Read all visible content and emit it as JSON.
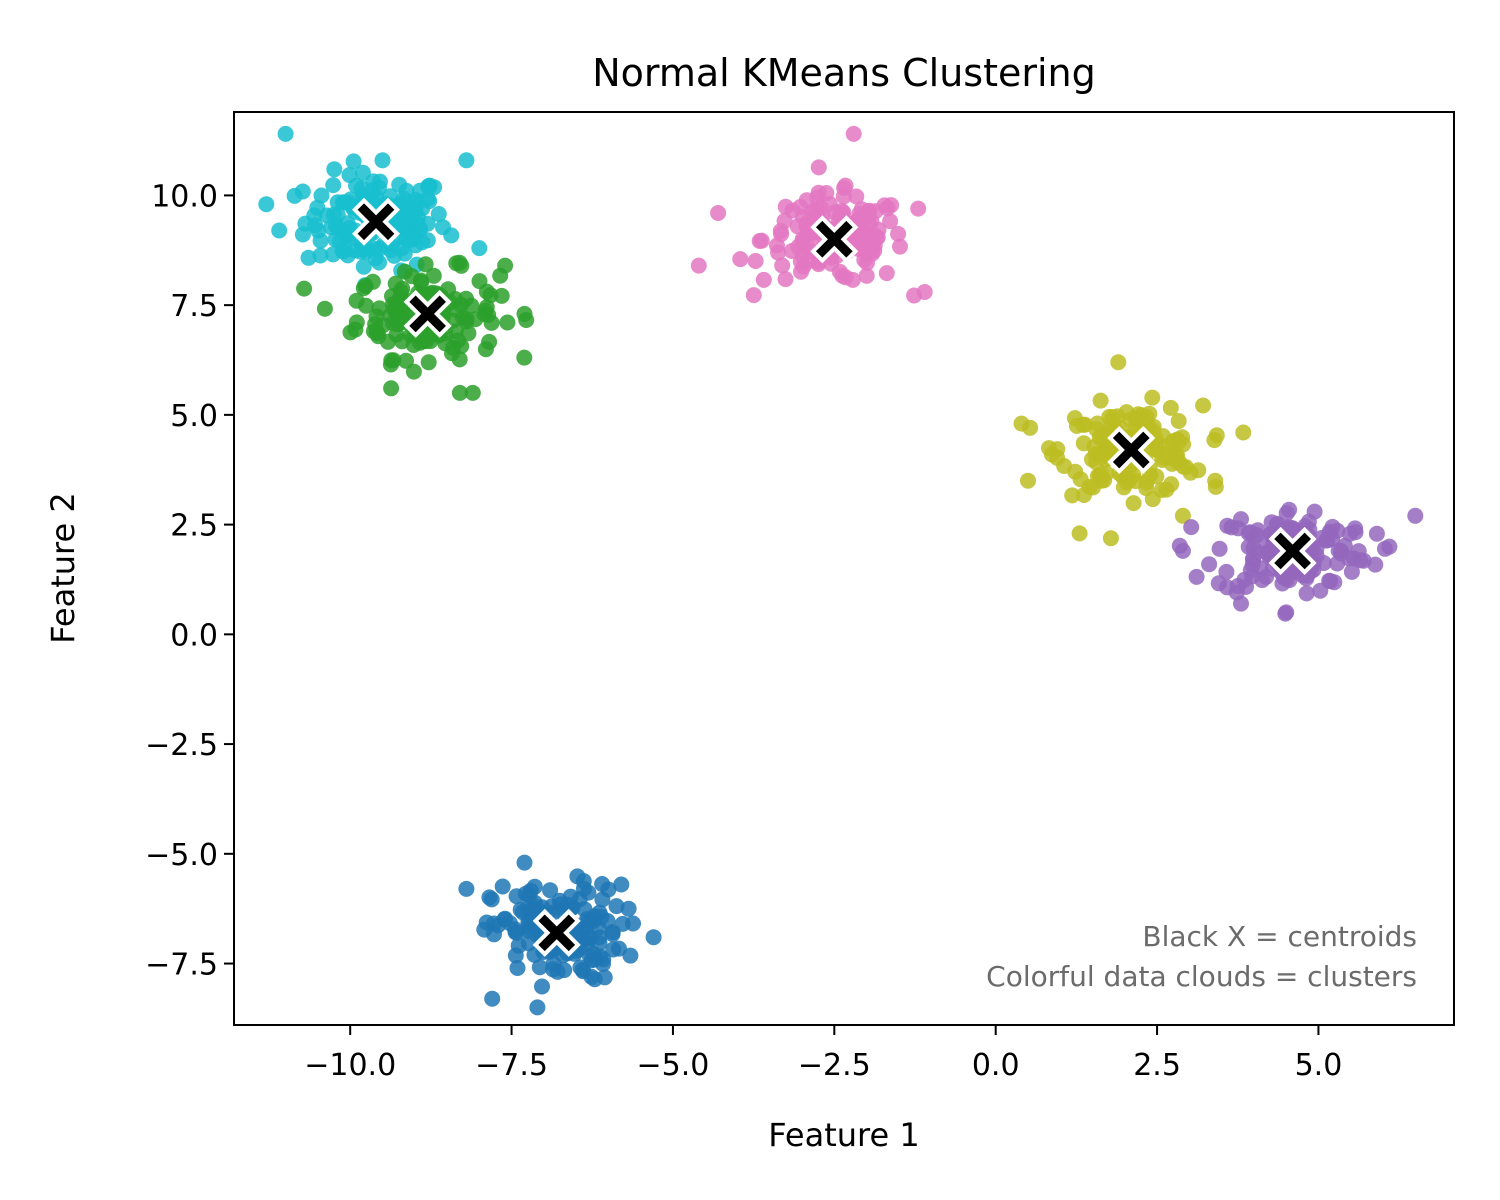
{
  "chart_data": {
    "type": "scatter",
    "title": "Normal KMeans Clustering",
    "xlabel": "Feature 1",
    "ylabel": "Feature 2",
    "xlim": [
      -11.8,
      7.1
    ],
    "ylim": [
      -8.9,
      11.9
    ],
    "xticks": [
      -10.0,
      -7.5,
      -5.0,
      -2.5,
      0.0,
      2.5,
      5.0
    ],
    "xtick_labels": [
      "−10.0",
      "−7.5",
      "−5.0",
      "−2.5",
      "0.0",
      "2.5",
      "5.0"
    ],
    "yticks": [
      -7.5,
      -5.0,
      -2.5,
      0.0,
      2.5,
      5.0,
      7.5,
      10.0
    ],
    "ytick_labels": [
      "−7.5",
      "−5.0",
      "−2.5",
      "0.0",
      "2.5",
      "5.0",
      "7.5",
      "10.0"
    ],
    "grid": false,
    "annotations": [
      "Black X = centroids",
      "Colorful data clouds = clusters"
    ],
    "clusters": [
      {
        "color": "#17becf",
        "center": [
          -9.6,
          9.4
        ],
        "spread": [
          0.55,
          0.55
        ],
        "n": 150,
        "outliers": [
          [
            -11.0,
            11.4
          ],
          [
            -11.3,
            9.8
          ],
          [
            -9.5,
            10.8
          ],
          [
            -8.2,
            10.8
          ],
          [
            -8.0,
            8.8
          ],
          [
            -11.1,
            9.2
          ]
        ]
      },
      {
        "color": "#2ca02c",
        "center": [
          -8.8,
          7.3
        ],
        "spread": [
          0.55,
          0.5
        ],
        "n": 150,
        "outliers": [
          [
            -8.3,
            5.5
          ],
          [
            -8.1,
            5.5
          ],
          [
            -7.3,
            7.3
          ],
          [
            -9.9,
            7.6
          ],
          [
            -7.6,
            8.4
          ]
        ]
      },
      {
        "color": "#e377c2",
        "center": [
          -2.5,
          9.0
        ],
        "spread": [
          0.55,
          0.5
        ],
        "n": 150,
        "outliers": [
          [
            -2.2,
            11.4
          ],
          [
            -4.6,
            8.4
          ],
          [
            -4.3,
            9.6
          ],
          [
            -1.1,
            7.8
          ],
          [
            -1.2,
            9.7
          ]
        ]
      },
      {
        "color": "#bcbd22",
        "center": [
          2.1,
          4.2
        ],
        "spread": [
          0.55,
          0.5
        ],
        "n": 150,
        "outliers": [
          [
            1.9,
            6.2
          ],
          [
            0.4,
            4.8
          ],
          [
            0.5,
            3.5
          ],
          [
            1.3,
            2.3
          ],
          [
            2.9,
            2.7
          ],
          [
            3.4,
            3.5
          ]
        ]
      },
      {
        "color": "#9467bd",
        "center": [
          4.6,
          1.9
        ],
        "spread": [
          0.6,
          0.5
        ],
        "n": 150,
        "outliers": [
          [
            6.5,
            2.7
          ],
          [
            4.5,
            0.5
          ],
          [
            2.9,
            1.9
          ],
          [
            6.1,
            2.0
          ],
          [
            3.8,
            0.7
          ]
        ]
      },
      {
        "color": "#1f77b4",
        "center": [
          -6.8,
          -6.8
        ],
        "spread": [
          0.5,
          0.55
        ],
        "n": 150,
        "outliers": [
          [
            -7.1,
            -8.5
          ],
          [
            -7.8,
            -8.3
          ],
          [
            -8.2,
            -5.8
          ],
          [
            -7.3,
            -5.2
          ],
          [
            -5.3,
            -6.9
          ],
          [
            -5.8,
            -5.7
          ]
        ]
      }
    ],
    "centroids": [
      [
        -9.6,
        9.4
      ],
      [
        -8.8,
        7.3
      ],
      [
        -2.5,
        9.0
      ],
      [
        2.1,
        4.2
      ],
      [
        4.6,
        1.9
      ],
      [
        -6.8,
        -6.8
      ]
    ]
  }
}
